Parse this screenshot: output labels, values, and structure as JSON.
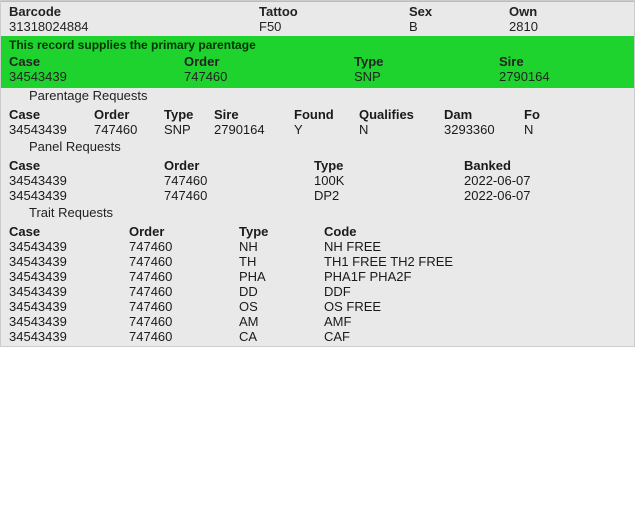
{
  "header": {
    "barcode_label": "Barcode",
    "barcode_value": "31318024884",
    "tattoo_label": "Tattoo",
    "tattoo_value": "F50",
    "sex_label": "Sex",
    "sex_value": "B",
    "own_label": "Own",
    "own_value": "2810"
  },
  "primary": {
    "message": "This record supplies the primary parentage",
    "case_label": "Case",
    "case_value": "34543439",
    "order_label": "Order",
    "order_value": "747460",
    "type_label": "Type",
    "type_value": "SNP",
    "sire_label": "Sire",
    "sire_value": "2790164"
  },
  "parentage": {
    "title": "Parentage Requests",
    "headers": {
      "case": "Case",
      "order": "Order",
      "type": "Type",
      "sire": "Sire",
      "found": "Found",
      "qualifies": "Qualifies",
      "dam": "Dam",
      "fo": "Fo"
    },
    "rows": [
      {
        "case": "34543439",
        "order": "747460",
        "type": "SNP",
        "sire": "2790164",
        "found": "Y",
        "qualifies": "N",
        "dam": "3293360",
        "fo": "N"
      }
    ]
  },
  "panel": {
    "title": "Panel Requests",
    "headers": {
      "case": "Case",
      "order": "Order",
      "type": "Type",
      "banked": "Banked"
    },
    "rows": [
      {
        "case": "34543439",
        "order": "747460",
        "type": "100K",
        "banked": "2022-06-07"
      },
      {
        "case": "34543439",
        "order": "747460",
        "type": "DP2",
        "banked": "2022-06-07"
      }
    ]
  },
  "trait": {
    "title": "Trait Requests",
    "headers": {
      "case": "Case",
      "order": "Order",
      "type": "Type",
      "code": "Code"
    },
    "rows": [
      {
        "case": "34543439",
        "order": "747460",
        "type": "NH",
        "code": "NH FREE"
      },
      {
        "case": "34543439",
        "order": "747460",
        "type": "TH",
        "code": "TH1 FREE TH2 FREE"
      },
      {
        "case": "34543439",
        "order": "747460",
        "type": "PHA",
        "code": "PHA1F PHA2F"
      },
      {
        "case": "34543439",
        "order": "747460",
        "type": "DD",
        "code": "DDF"
      },
      {
        "case": "34543439",
        "order": "747460",
        "type": "OS",
        "code": "OS FREE"
      },
      {
        "case": "34543439",
        "order": "747460",
        "type": "AM",
        "code": "AMF"
      },
      {
        "case": "34543439",
        "order": "747460",
        "type": "CA",
        "code": "CAF"
      }
    ]
  }
}
